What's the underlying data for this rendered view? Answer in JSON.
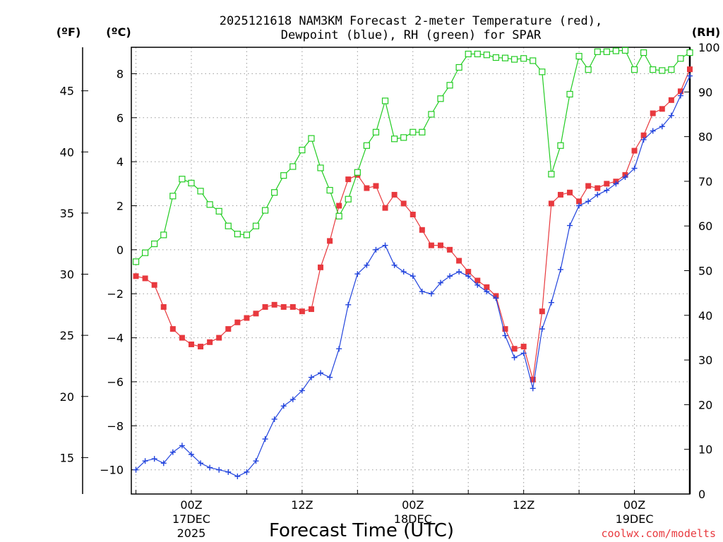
{
  "chart_data": {
    "type": "line",
    "title_line1": "2025121618 NAM3KM Forecast 2-meter Temperature (red),",
    "title_line2": "Dewpoint (blue), RH (green) for SPAR",
    "xlabel": "Forecast Time (UTC)",
    "credit": "coolwx.com/modelts",
    "unit_labels": {
      "fahrenheit": "(ºF)",
      "celsius": "(ºC)",
      "rh": "(RH)"
    },
    "x_range_hours": [
      -6.5,
      54
    ],
    "x_ticks": [
      {
        "hour": 0,
        "l1": "00Z",
        "l2": "17DEC",
        "l3": "2025"
      },
      {
        "hour": 12,
        "l1": "12Z",
        "l2": "",
        "l3": ""
      },
      {
        "hour": 24,
        "l1": "00Z",
        "l2": "18DEC",
        "l3": ""
      },
      {
        "hour": 36,
        "l1": "12Z",
        "l2": "",
        "l3": ""
      },
      {
        "hour": 48,
        "l1": "00Z",
        "l2": "19DEC",
        "l3": ""
      }
    ],
    "celsius_axis": {
      "range": [
        -11.1,
        9.2
      ],
      "ticks": [
        "-10",
        "-8",
        "-6",
        "-4",
        "-2",
        "0",
        "2",
        "4",
        "6",
        "8"
      ]
    },
    "fahrenheit_axis": {
      "ticks": [
        "15",
        "20",
        "25",
        "30",
        "35",
        "40",
        "45"
      ]
    },
    "rh_axis": {
      "range": [
        0,
        100
      ],
      "ticks": [
        "0",
        "10",
        "20",
        "30",
        "40",
        "50",
        "60",
        "70",
        "80",
        "90",
        "100"
      ]
    },
    "series": [
      {
        "name": "2-meter Temperature",
        "unit": "C",
        "color": "#e8393e",
        "marker": "filled-square",
        "hours": [
          -6,
          -5,
          -4,
          -3,
          -2,
          -1,
          0,
          1,
          2,
          3,
          4,
          5,
          6,
          7,
          8,
          9,
          10,
          11,
          12,
          13,
          14,
          15,
          16,
          17,
          18,
          19,
          20,
          21,
          22,
          23,
          24,
          25,
          26,
          27,
          28,
          29,
          30,
          31,
          32,
          33,
          34,
          35,
          36,
          37,
          38,
          39,
          40,
          41,
          42,
          43,
          44,
          45,
          46,
          47,
          48,
          49,
          50,
          51,
          52,
          53,
          54
        ],
        "values": [
          -1.2,
          -1.3,
          -1.6,
          -2.6,
          -3.6,
          -4.0,
          -4.3,
          -4.4,
          -4.2,
          -4.0,
          -3.6,
          -3.3,
          -3.1,
          -2.9,
          -2.6,
          -2.5,
          -2.6,
          -2.6,
          -2.8,
          -2.7,
          -0.8,
          0.4,
          2.0,
          3.2,
          3.4,
          2.8,
          2.9,
          1.9,
          2.5,
          2.1,
          1.6,
          0.9,
          0.2,
          0.2,
          0.0,
          -0.5,
          -1.0,
          -1.4,
          -1.7,
          -2.1,
          -3.6,
          -4.5,
          -4.4,
          -5.9,
          -2.8,
          2.1,
          2.5,
          2.6,
          2.2,
          2.9,
          2.8,
          3.0,
          3.1,
          3.4,
          4.5,
          5.2,
          6.2,
          6.4,
          6.8,
          7.2,
          8.2
        ]
      },
      {
        "name": "Dewpoint",
        "unit": "C",
        "color": "#2244dd",
        "marker": "plus",
        "hours": [
          -6,
          -5,
          -4,
          -3,
          -2,
          -1,
          0,
          1,
          2,
          3,
          4,
          5,
          6,
          7,
          8,
          9,
          10,
          11,
          12,
          13,
          14,
          15,
          16,
          17,
          18,
          19,
          20,
          21,
          22,
          23,
          24,
          25,
          26,
          27,
          28,
          29,
          30,
          31,
          32,
          33,
          34,
          35,
          36,
          37,
          38,
          39,
          40,
          41,
          42,
          43,
          44,
          45,
          46,
          47,
          48,
          49,
          50,
          51,
          52,
          53,
          54
        ],
        "values": [
          -10.0,
          -9.6,
          -9.5,
          -9.7,
          -9.2,
          -8.9,
          -9.3,
          -9.7,
          -9.9,
          -10.0,
          -10.1,
          -10.3,
          -10.1,
          -9.6,
          -8.6,
          -7.7,
          -7.1,
          -6.8,
          -6.4,
          -5.8,
          -5.6,
          -5.8,
          -4.5,
          -2.5,
          -1.1,
          -0.7,
          0.0,
          0.2,
          -0.7,
          -1.0,
          -1.2,
          -1.9,
          -2.0,
          -1.5,
          -1.2,
          -1.0,
          -1.2,
          -1.6,
          -1.9,
          -2.2,
          -3.9,
          -4.9,
          -4.7,
          -6.3,
          -3.6,
          -2.4,
          -0.9,
          1.1,
          2.0,
          2.2,
          2.5,
          2.7,
          3.0,
          3.3,
          3.7,
          5.0,
          5.4,
          5.6,
          6.1,
          7.0,
          7.9
        ]
      },
      {
        "name": "RH",
        "unit": "%",
        "color": "#22cc22",
        "marker": "open-square",
        "hours": [
          -6,
          -5,
          -4,
          -3,
          -2,
          -1,
          0,
          1,
          2,
          3,
          4,
          5,
          6,
          7,
          8,
          9,
          10,
          11,
          12,
          13,
          14,
          15,
          16,
          17,
          18,
          19,
          20,
          21,
          22,
          23,
          24,
          25,
          26,
          27,
          28,
          29,
          30,
          31,
          32,
          33,
          34,
          35,
          36,
          37,
          38,
          39,
          40,
          41,
          42,
          43,
          44,
          45,
          46,
          47,
          48,
          49,
          50,
          51,
          52,
          53,
          54
        ],
        "values": [
          52.0,
          54.0,
          56.0,
          58.0,
          66.7,
          70.5,
          69.6,
          67.8,
          64.8,
          63.3,
          60.0,
          58.2,
          58.0,
          60.0,
          63.5,
          67.5,
          71.3,
          73.3,
          77.0,
          79.6,
          73.0,
          68.0,
          62.2,
          66.0,
          72.0,
          78.0,
          81.0,
          88.0,
          79.5,
          79.8,
          81.0,
          81.0,
          85.0,
          88.5,
          91.5,
          95.5,
          98.5,
          98.5,
          98.3,
          97.7,
          97.6,
          97.3,
          97.5,
          97.0,
          94.5,
          71.6,
          78.0,
          89.5,
          98.0,
          95.0,
          99.0,
          99.0,
          99.2,
          99.3,
          95.0,
          98.8,
          95.0,
          94.8,
          95.0,
          97.5,
          98.8
        ]
      }
    ]
  }
}
